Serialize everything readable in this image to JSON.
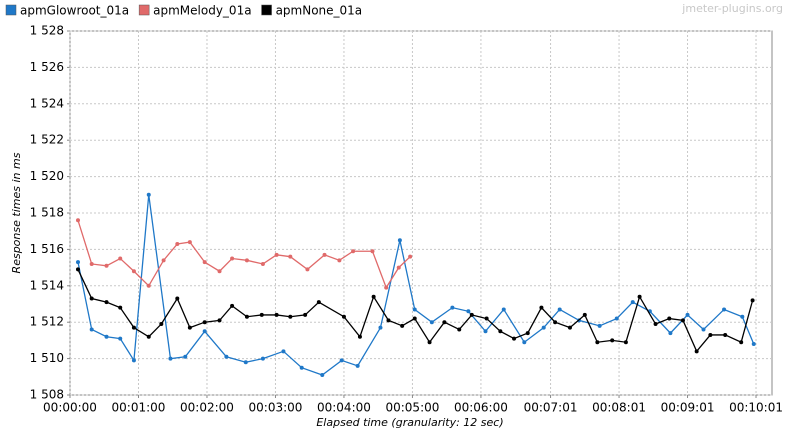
{
  "chart_data": {
    "type": "line",
    "watermark": "jmeter-plugins.org",
    "xlabel": "Elapsed time (granularity: 12 sec)",
    "ylabel": "Response times in ms",
    "legend": "top-left",
    "grid": true,
    "xlim": [
      0,
      615
    ],
    "ylim": [
      1508,
      1528
    ],
    "xticks": [
      {
        "value": 0,
        "label": "00:00:00"
      },
      {
        "value": 60,
        "label": "00:01:00"
      },
      {
        "value": 120,
        "label": "00:02:00"
      },
      {
        "value": 180,
        "label": "00:03:00"
      },
      {
        "value": 240,
        "label": "00:04:00"
      },
      {
        "value": 300,
        "label": "00:05:00"
      },
      {
        "value": 360,
        "label": "00:06:00"
      },
      {
        "value": 421,
        "label": "00:07:01"
      },
      {
        "value": 481,
        "label": "00:08:01"
      },
      {
        "value": 541,
        "label": "00:09:01"
      },
      {
        "value": 601,
        "label": "00:10:01"
      }
    ],
    "yticks": [
      {
        "value": 1508,
        "label": "1 508"
      },
      {
        "value": 1510,
        "label": "1 510"
      },
      {
        "value": 1512,
        "label": "1 512"
      },
      {
        "value": 1514,
        "label": "1 514"
      },
      {
        "value": 1516,
        "label": "1 516"
      },
      {
        "value": 1518,
        "label": "1 518"
      },
      {
        "value": 1520,
        "label": "1 520"
      },
      {
        "value": 1522,
        "label": "1 522"
      },
      {
        "value": 1524,
        "label": "1 524"
      },
      {
        "value": 1526,
        "label": "1 526"
      },
      {
        "value": 1528,
        "label": "1 528"
      }
    ],
    "series": [
      {
        "name": "apmGlowroot_01a",
        "color": "#1f78c8",
        "x": [
          7,
          19,
          32,
          44,
          56,
          69,
          88,
          101,
          118,
          137,
          154,
          169,
          187,
          203,
          221,
          238,
          252,
          272,
          289,
          302,
          317,
          335,
          349,
          364,
          380,
          398,
          415,
          429,
          446,
          464,
          479,
          493,
          508,
          526,
          541,
          555,
          573,
          589,
          599
        ],
        "values": [
          1515.3,
          1511.6,
          1511.2,
          1511.1,
          1509.9,
          1519.0,
          1510.0,
          1510.1,
          1511.5,
          1510.1,
          1509.8,
          1510.0,
          1510.4,
          1509.5,
          1509.1,
          1509.9,
          1509.6,
          1511.7,
          1516.5,
          1512.7,
          1512.0,
          1512.8,
          1512.6,
          1511.5,
          1512.7,
          1510.9,
          1511.7,
          1512.7,
          1512.1,
          1511.8,
          1512.2,
          1513.1,
          1512.6,
          1511.4,
          1512.4,
          1511.6,
          1512.7,
          1512.3,
          1510.8
        ]
      },
      {
        "name": "apmMelody_01a",
        "color": "#e06a6a",
        "x": [
          7,
          19,
          32,
          44,
          56,
          69,
          82,
          94,
          105,
          118,
          131,
          142,
          155,
          169,
          181,
          193,
          208,
          223,
          236,
          248,
          265,
          277,
          288,
          298
        ],
        "values": [
          1517.6,
          1515.2,
          1515.1,
          1515.5,
          1514.8,
          1514.0,
          1515.4,
          1516.3,
          1516.4,
          1515.3,
          1514.8,
          1515.5,
          1515.4,
          1515.2,
          1515.7,
          1515.6,
          1514.9,
          1515.7,
          1515.4,
          1515.9,
          1515.9,
          1513.9,
          1515.0,
          1515.6
        ]
      },
      {
        "name": "apmNone_01a",
        "color": "#000000",
        "x": [
          7,
          19,
          32,
          44,
          56,
          69,
          80,
          94,
          105,
          118,
          131,
          142,
          155,
          168,
          181,
          193,
          206,
          218,
          240,
          254,
          266,
          279,
          291,
          302,
          315,
          328,
          341,
          352,
          365,
          377,
          389,
          401,
          413,
          425,
          438,
          451,
          462,
          475,
          487,
          499,
          513,
          525,
          537,
          549,
          561,
          574,
          588,
          598
        ],
        "values": [
          1514.9,
          1513.3,
          1513.1,
          1512.8,
          1511.7,
          1511.2,
          1511.9,
          1513.3,
          1511.7,
          1512.0,
          1512.1,
          1512.9,
          1512.3,
          1512.4,
          1512.4,
          1512.3,
          1512.4,
          1513.1,
          1512.3,
          1511.2,
          1513.4,
          1512.1,
          1511.8,
          1512.2,
          1510.9,
          1512.0,
          1511.6,
          1512.4,
          1512.2,
          1511.5,
          1511.1,
          1511.4,
          1512.8,
          1512.0,
          1511.7,
          1512.4,
          1510.9,
          1511.0,
          1510.9,
          1513.4,
          1511.9,
          1512.2,
          1512.1,
          1510.4,
          1511.3,
          1511.3,
          1510.9,
          1513.2
        ]
      }
    ]
  }
}
